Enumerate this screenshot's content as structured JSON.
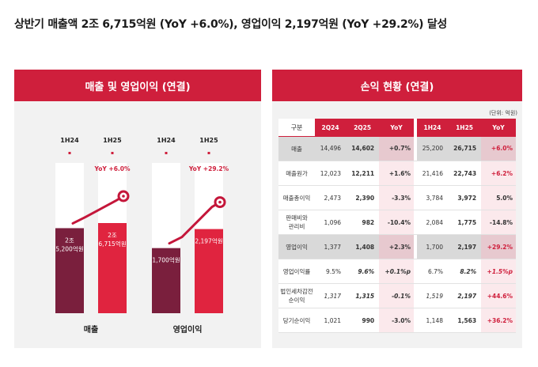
{
  "headline": "상반기 매출액 2조 6,715억원 (YoY +6.0%), 영업이익 2,197억원 (YoY +29.2%) 달성",
  "left_panel": {
    "title": "매출 및 영업이익 (연결)",
    "groups": [
      {
        "label": "매출",
        "bars": [
          {
            "period": "1H24",
            "value": 25200,
            "label_lines": [
              "2조",
              "5,200억원"
            ]
          },
          {
            "period": "1H25",
            "value": 26715,
            "label_lines": [
              "2조",
              "6,715억원"
            ]
          }
        ],
        "yoy": "YoY +6.0%"
      },
      {
        "label": "영업이익",
        "bars": [
          {
            "period": "1H24",
            "value": 1700,
            "label_lines": [
              "1,700억원"
            ]
          },
          {
            "period": "1H25",
            "value": 2197,
            "label_lines": [
              "2,197억원"
            ]
          }
        ],
        "yoy": "YoY +29.2%"
      }
    ],
    "colors": {
      "bar_prior": "#7a1f3d",
      "bar_current": "#e0243f",
      "growth_line": "#c4163a"
    }
  },
  "right_panel": {
    "title": "손익 현황 (연결)",
    "unit": "(단위: 억원)",
    "headers": [
      "구분",
      "2Q24",
      "2Q25",
      "YoY",
      "1H24",
      "1H25",
      "YoY"
    ],
    "rows": [
      {
        "label": [
          "매출"
        ],
        "cells": [
          "14,496",
          "14,602",
          "+0.7%",
          "25,200",
          "26,715",
          "+6.0%"
        ],
        "highlight": true
      },
      {
        "label": [
          "매출원가"
        ],
        "cells": [
          "12,023",
          "12,211",
          "+1.6%",
          "21,416",
          "22,743",
          "+6.2%"
        ]
      },
      {
        "label": [
          "매출총이익"
        ],
        "cells": [
          "2,473",
          "2,390",
          "-3.3%",
          "3,784",
          "3,972",
          "5.0%"
        ]
      },
      {
        "label": [
          "판매비와",
          "관리비"
        ],
        "cells": [
          "1,096",
          "982",
          "-10.4%",
          "2,084",
          "1,775",
          "-14.8%"
        ]
      },
      {
        "label": [
          "영업이익"
        ],
        "cells": [
          "1,377",
          "1,408",
          "+2.3%",
          "1,700",
          "2,197",
          "+29.2%"
        ],
        "highlight": true
      },
      {
        "label": [
          "영업이익률"
        ],
        "cells": [
          "9.5%",
          "9.6%",
          "+0.1%p",
          "6.7%",
          "8.2%",
          "+1.5%p"
        ],
        "italic": [
          false,
          true,
          true,
          false,
          true,
          true
        ]
      },
      {
        "label": [
          "법인세차감전",
          "순이익"
        ],
        "cells": [
          "1,317",
          "1,315",
          "-0.1%",
          "1,519",
          "2,197",
          "+44.6%"
        ],
        "italic": [
          true,
          true,
          true,
          true,
          true,
          false
        ]
      },
      {
        "label": [
          "당기순이익"
        ],
        "cells": [
          "1,021",
          "990",
          "-3.0%",
          "1,148",
          "1,563",
          "+36.2%"
        ]
      }
    ],
    "colors": {
      "header": "#cf1f3c",
      "highlight_row": "#d9d9d9",
      "yoy_col": "#fbe9ec",
      "positive": "#cf1f3c"
    }
  }
}
